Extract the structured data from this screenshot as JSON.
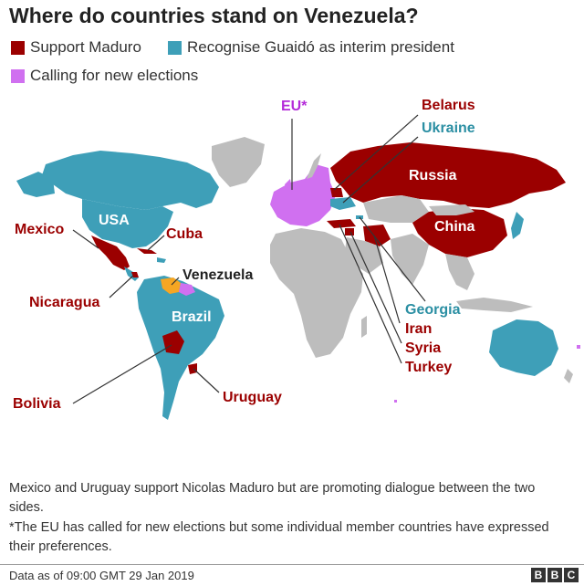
{
  "title": "Where do countries stand on Venezuela?",
  "legend": [
    {
      "label": "Support Maduro",
      "color": "#9b0000"
    },
    {
      "label": "Recognise Guaidó as interim president",
      "color": "#3e9fb8"
    },
    {
      "label": "Calling for new elections",
      "color": "#d070f0"
    }
  ],
  "colors": {
    "support": "#9b0000",
    "recognise": "#3e9fb8",
    "elections": "#d070f0",
    "neutral": "#bdbdbd",
    "venezuela": "#f5a623"
  },
  "labels": {
    "eu": "EU*",
    "belarus": "Belarus",
    "ukraine": "Ukraine",
    "russia": "Russia",
    "usa": "USA",
    "china": "China",
    "mexico": "Mexico",
    "cuba": "Cuba",
    "venezuela": "Venezuela",
    "nicaragua": "Nicaragua",
    "brazil": "Brazil",
    "georgia": "Georgia",
    "iran": "Iran",
    "syria": "Syria",
    "turkey": "Turkey",
    "bolivia": "Bolivia",
    "uruguay": "Uruguay"
  },
  "notes": [
    "Mexico and Uruguay support Nicolas Maduro but are promoting dialogue between the two sides.",
    "*The EU has called for new elections but some individual member countries have expressed their preferences."
  ],
  "source": "Data as of 09:00 GMT 29 Jan 2019",
  "brand": [
    "B",
    "B",
    "C"
  ]
}
